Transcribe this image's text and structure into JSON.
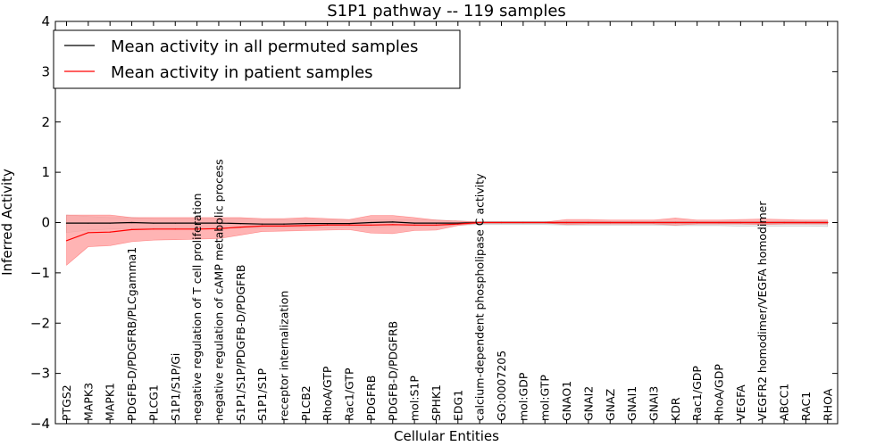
{
  "chart_data": {
    "type": "line",
    "title": "S1P1 pathway -- 119 samples",
    "xlabel": "Cellular Entities",
    "ylabel": "Inferred Activity",
    "ylim": [
      -4,
      4
    ],
    "yticks": [
      "−4",
      "−3",
      "−2",
      "−1",
      "0",
      "1",
      "2",
      "3",
      "4"
    ],
    "grid": false,
    "legend_position": "top-left",
    "categories": [
      "PTGS2",
      "MAPK3",
      "MAPK1",
      "PDGFB-D/PDGFRB/PLCgamma1",
      "PLCG1",
      "S1P1/S1P/Gi",
      "negative regulation of T cell proliferation",
      "negative regulation of cAMP metabolic process",
      "S1P1/S1P/PDGFB-D/PDGFRB",
      "S1P1/S1P",
      "receptor internalization",
      "PLCB2",
      "RhoA/GTP",
      "Rac1/GTP",
      "PDGFRB",
      "PDGFB-D/PDGFRB",
      "mol:S1P",
      "SPHK1",
      "EDG1",
      "calcium-dependent phospholipase C activity",
      "GO:0007205",
      "mol:GDP",
      "mol:GTP",
      "GNAO1",
      "GNAI2",
      "GNAZ",
      "GNAI1",
      "GNAI3",
      "KDR",
      "Rac1/GDP",
      "RhoA/GDP",
      "VEGFA",
      "VEGFR2 homodimer/VEGFA homodimer",
      "ABCC1",
      "RAC1",
      "RHOA"
    ],
    "series": [
      {
        "name": "Mean activity in all permuted samples",
        "color": "#000000",
        "values": [
          -0.01,
          -0.01,
          -0.01,
          0.0,
          -0.01,
          -0.01,
          -0.01,
          -0.01,
          -0.02,
          -0.03,
          -0.03,
          -0.02,
          -0.02,
          -0.02,
          0.0,
          0.01,
          -0.01,
          -0.01,
          -0.01,
          0.0,
          0.0,
          0.0,
          0.0,
          0.0,
          0.0,
          0.0,
          0.0,
          0.0,
          0.0,
          0.0,
          0.0,
          0.0,
          0.0,
          0.0,
          0.0,
          0.0
        ],
        "band_upper": [
          0.15,
          0.12,
          0.1,
          0.1,
          0.08,
          0.08,
          0.08,
          0.08,
          0.08,
          0.06,
          0.06,
          0.06,
          0.06,
          0.05,
          0.05,
          0.05,
          0.05,
          0.05,
          0.03,
          0.02,
          0.02,
          0.02,
          0.02,
          0.02,
          0.02,
          0.02,
          0.02,
          0.02,
          0.02,
          0.02,
          0.02,
          0.02,
          0.02,
          0.02,
          0.02,
          0.02
        ],
        "band_lower": [
          -0.2,
          -0.15,
          -0.13,
          -0.12,
          -0.11,
          -0.11,
          -0.11,
          -0.11,
          -0.11,
          -0.11,
          -0.1,
          -0.1,
          -0.1,
          -0.09,
          -0.09,
          -0.08,
          -0.08,
          -0.07,
          -0.05,
          -0.04,
          -0.04,
          -0.04,
          -0.04,
          -0.05,
          -0.05,
          -0.05,
          -0.05,
          -0.05,
          -0.06,
          -0.06,
          -0.06,
          -0.07,
          -0.07,
          -0.07,
          -0.07,
          -0.08
        ]
      },
      {
        "name": "Mean activity in patient samples",
        "color": "#ff0000",
        "values": [
          -0.36,
          -0.2,
          -0.19,
          -0.14,
          -0.13,
          -0.13,
          -0.13,
          -0.12,
          -0.09,
          -0.07,
          -0.07,
          -0.06,
          -0.05,
          -0.05,
          -0.05,
          -0.04,
          -0.05,
          -0.05,
          -0.03,
          0.0,
          0.0,
          0.0,
          0.0,
          0.0,
          0.0,
          0.0,
          0.0,
          0.0,
          0.0,
          0.0,
          0.0,
          0.0,
          0.0,
          0.0,
          0.0,
          0.0
        ],
        "band_upper": [
          0.15,
          0.15,
          0.15,
          0.1,
          0.1,
          0.1,
          0.1,
          0.1,
          0.1,
          0.08,
          0.08,
          0.1,
          0.08,
          0.06,
          0.14,
          0.14,
          0.1,
          0.05,
          0.03,
          0.01,
          0.01,
          0.01,
          0.01,
          0.06,
          0.06,
          0.05,
          0.05,
          0.05,
          0.09,
          0.05,
          0.05,
          0.06,
          0.07,
          0.06,
          0.05,
          0.05
        ],
        "band_lower": [
          -0.85,
          -0.48,
          -0.46,
          -0.38,
          -0.35,
          -0.34,
          -0.33,
          -0.32,
          -0.25,
          -0.18,
          -0.17,
          -0.16,
          -0.15,
          -0.14,
          -0.21,
          -0.22,
          -0.16,
          -0.15,
          -0.06,
          -0.01,
          -0.01,
          -0.01,
          -0.01,
          -0.04,
          -0.03,
          -0.03,
          -0.03,
          -0.03,
          -0.05,
          -0.03,
          -0.03,
          -0.03,
          -0.04,
          -0.03,
          -0.03,
          -0.03
        ]
      }
    ]
  }
}
